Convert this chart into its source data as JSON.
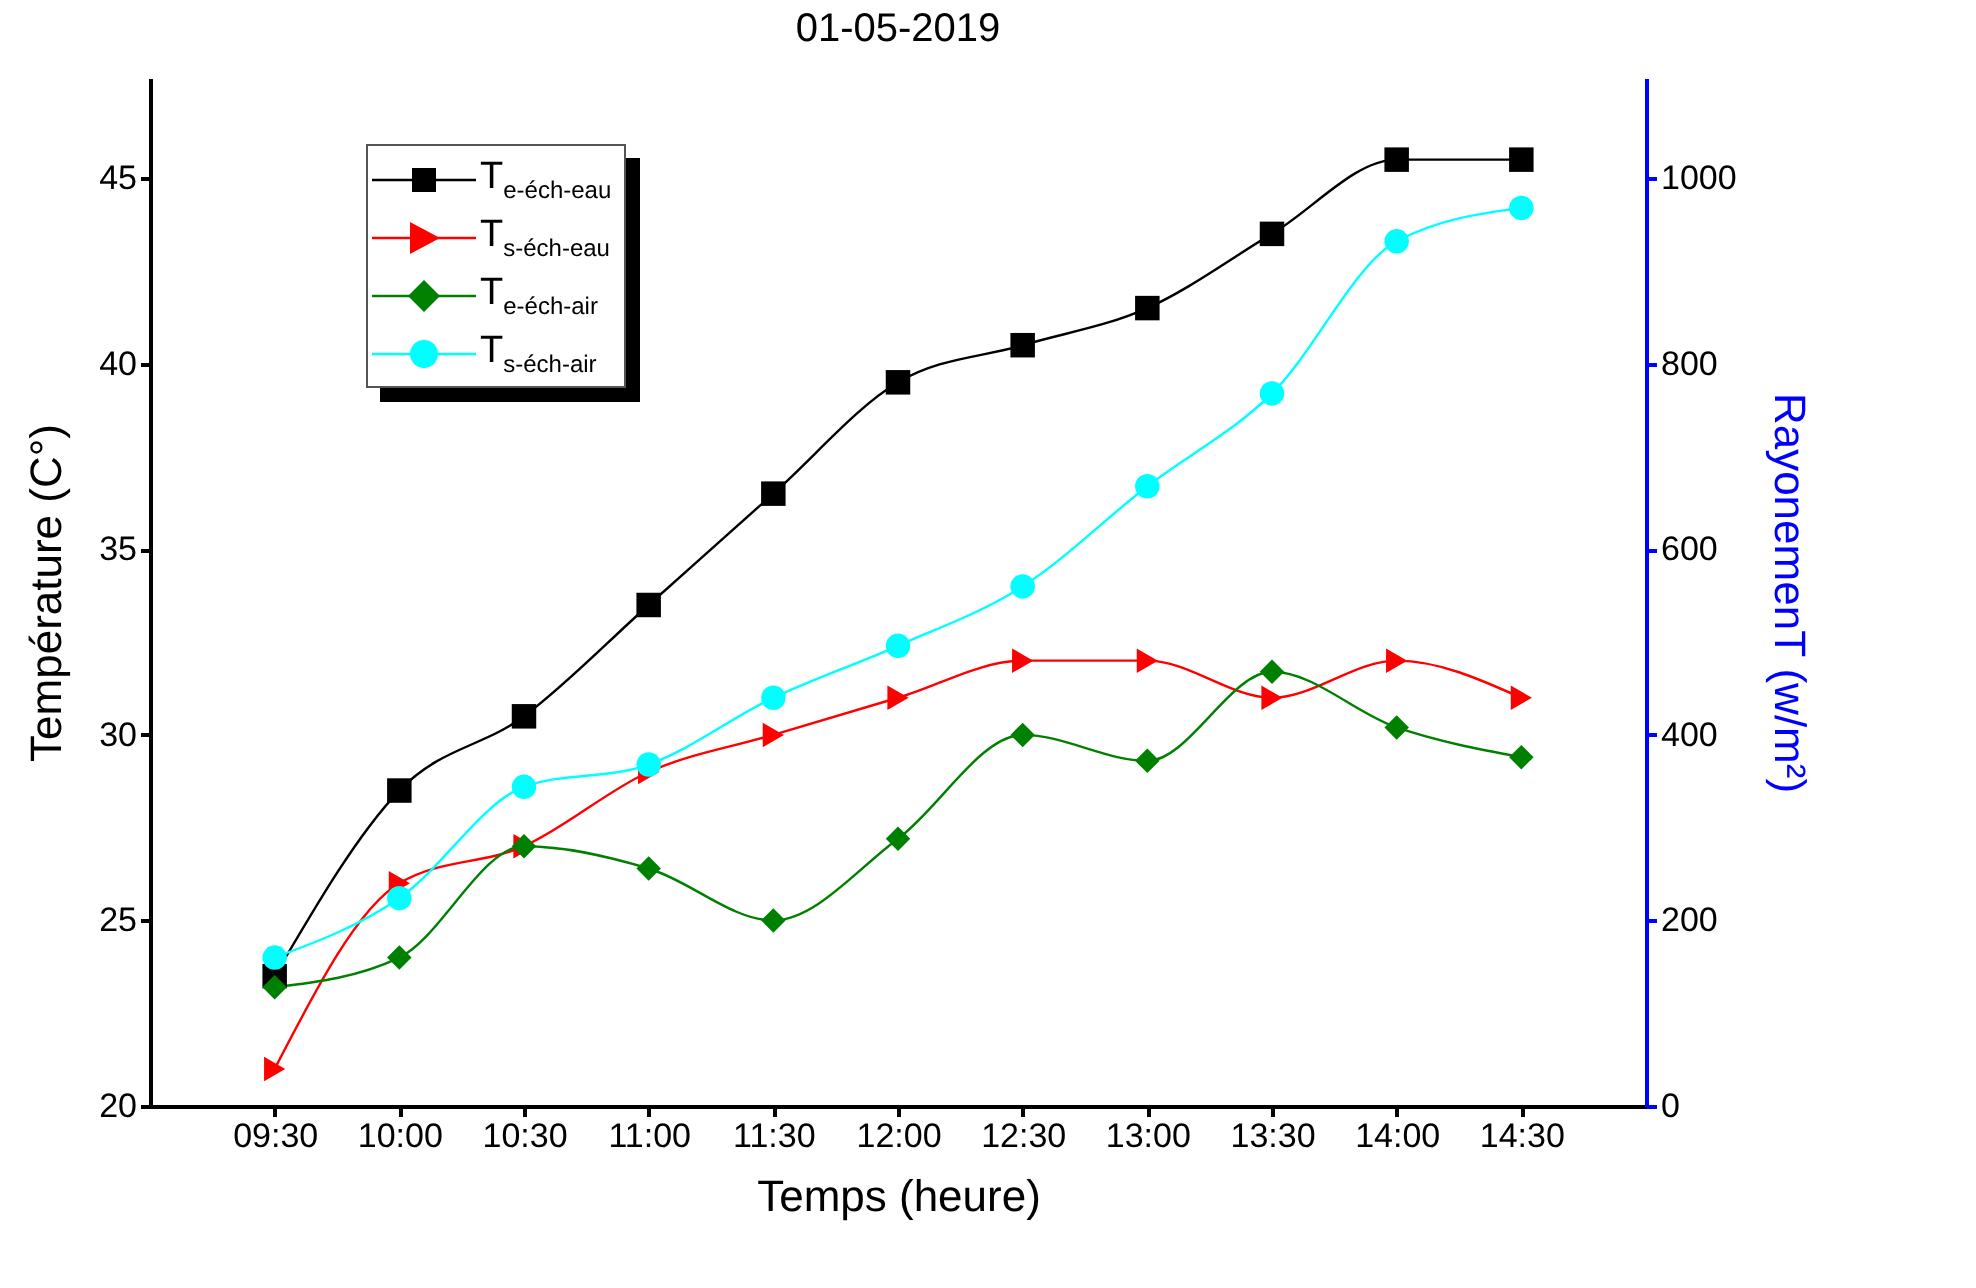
{
  "chart_data": {
    "type": "line",
    "title": "01-05-2019",
    "xlabel": "Temps (heure)",
    "ylabel": "Température (C°)",
    "y2label": "RayonemenT (w/m²)",
    "categories": [
      "09:30",
      "10:00",
      "10:30",
      "11:00",
      "11:30",
      "12:00",
      "12:30",
      "13:00",
      "13:30",
      "14:00",
      "14:30"
    ],
    "series": [
      {
        "name": "T$_{e-éch-eau}$",
        "color": "#000000",
        "marker": "square",
        "values": [
          23.5,
          28.5,
          30.5,
          33.5,
          36.5,
          39.5,
          40.5,
          41.5,
          43.5,
          45.5,
          45.5
        ]
      },
      {
        "name": "T$_{s-éch-eau}$",
        "color": "#ff0000",
        "marker": "triangle",
        "values": [
          21,
          26,
          27,
          29,
          30,
          31,
          32,
          32,
          31,
          32,
          31
        ]
      },
      {
        "name": "T$_{e-éch-air}$",
        "color": "#008000",
        "marker": "diamond",
        "values": [
          23.2,
          24,
          27,
          26.4,
          25,
          27.2,
          30,
          29.3,
          31.7,
          30.2,
          29.4
        ]
      },
      {
        "name": "T$_{s-éch-air}$",
        "color": "#00ffff",
        "marker": "circle",
        "values": [
          24,
          25.6,
          28.6,
          29.2,
          31,
          32.4,
          34,
          36.7,
          39.2,
          43.3,
          44.2
        ]
      }
    ],
    "ylim": [
      20,
      47.7
    ],
    "yticks": [
      20,
      25,
      30,
      35,
      40,
      45
    ],
    "y2lim": [
      0,
      1108
    ],
    "y2ticks": [
      0,
      200,
      400,
      600,
      800,
      1000
    ],
    "grid": false,
    "legend": "top left"
  }
}
